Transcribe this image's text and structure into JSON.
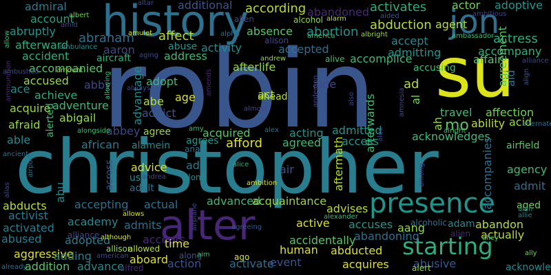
{
  "words": [
    {
      "text": "robin",
      "color": "#39568c"
    },
    {
      "text": "christopher",
      "color": "#287d8e"
    },
    {
      "text": "su",
      "color": "#dce319"
    },
    {
      "text": "history",
      "color": "#2d708e"
    },
    {
      "text": "jon",
      "color": "#2d708e"
    },
    {
      "text": "alter",
      "color": "#482677"
    },
    {
      "text": "presence",
      "color": "#1f968b"
    },
    {
      "text": "starting",
      "color": "#29af7f"
    },
    {
      "text": "admiral",
      "color": "#287d8e"
    },
    {
      "text": "additional",
      "color": "#39568c"
    },
    {
      "text": "according",
      "color": "#b8de29"
    },
    {
      "text": "activates",
      "color": "#29af7f"
    },
    {
      "text": "actor",
      "color": "#73d055"
    },
    {
      "text": "adoptive",
      "color": "#1f968b"
    },
    {
      "text": "account",
      "color": "#20a387"
    },
    {
      "text": "abandoned",
      "color": "#482677"
    },
    {
      "text": "abduction",
      "color": "#b8de29"
    },
    {
      "text": "actress",
      "color": "#29af7f"
    },
    {
      "text": "abraham",
      "color": "#2d708e"
    },
    {
      "text": "affect",
      "color": "#b8de29"
    },
    {
      "text": "address",
      "color": "#3cbb75"
    },
    {
      "text": "absence",
      "color": "#55c667"
    },
    {
      "text": "abortion",
      "color": "#1f968b"
    },
    {
      "text": "agent",
      "color": "#b8de29"
    },
    {
      "text": "accompany",
      "color": "#29af7f"
    },
    {
      "text": "abruptly",
      "color": "#1f968b"
    },
    {
      "text": "afterward",
      "color": "#29af7f"
    },
    {
      "text": "aaron",
      "color": "#404788"
    },
    {
      "text": "abuse",
      "color": "#1f968b"
    },
    {
      "text": "activity",
      "color": "#238a8d"
    },
    {
      "text": "accept",
      "color": "#238a8d"
    },
    {
      "text": "accident",
      "color": "#29af7f"
    },
    {
      "text": "aircraft",
      "color": "#29af7f"
    },
    {
      "text": "accepted",
      "color": "#2d708e"
    },
    {
      "text": "admitting",
      "color": "#1f968b"
    },
    {
      "text": "affair",
      "color": "#55c667"
    },
    {
      "text": "accompanied",
      "color": "#55c667"
    },
    {
      "text": "afterlife",
      "color": "#95d840"
    },
    {
      "text": "accomplice",
      "color": "#3cbb75"
    },
    {
      "text": "accusing",
      "color": "#3cbb75"
    },
    {
      "text": "accused",
      "color": "#95d840"
    },
    {
      "text": "abby",
      "color": "#404788"
    },
    {
      "text": "adopt",
      "color": "#3cbb75"
    },
    {
      "text": "aide",
      "color": "#404788"
    },
    {
      "text": "ace",
      "color": "#238a8d"
    },
    {
      "text": "achieve",
      "color": "#29af7f"
    },
    {
      "text": "act",
      "color": "#b8de29"
    },
    {
      "text": "ad",
      "color": "#b8de29"
    },
    {
      "text": "age",
      "color": "#dce319"
    },
    {
      "text": "ahead",
      "color": "#b8de29"
    },
    {
      "text": "abe",
      "color": "#b8de29"
    },
    {
      "text": "acquire",
      "color": "#95d840"
    },
    {
      "text": "adventure",
      "color": "#3cbb75"
    },
    {
      "text": "abigail",
      "color": "#95d840"
    },
    {
      "text": "addict",
      "color": "#39568c"
    },
    {
      "text": "travel",
      "color": "#3cbb75"
    },
    {
      "text": "affection",
      "color": "#73d055"
    },
    {
      "text": "acid",
      "color": "#95d840"
    },
    {
      "text": "afraid",
      "color": "#95d840"
    },
    {
      "text": "abbey",
      "color": "#404788"
    },
    {
      "text": "agree",
      "color": "#95d840"
    },
    {
      "text": "acquired",
      "color": "#55c667"
    },
    {
      "text": "acting",
      "color": "#1f968b"
    },
    {
      "text": "admitted",
      "color": "#1f968b"
    },
    {
      "text": "mo",
      "color": "#55c667"
    },
    {
      "text": "ability",
      "color": "#b8de29"
    },
    {
      "text": "able",
      "color": "#238a8d"
    },
    {
      "text": "african",
      "color": "#287d8e"
    },
    {
      "text": "alamein",
      "color": "#238a8d"
    },
    {
      "text": "agrees",
      "color": "#1f968b"
    },
    {
      "text": "afford",
      "color": "#dce319"
    },
    {
      "text": "agreed",
      "color": "#3cbb75"
    },
    {
      "text": "access",
      "color": "#1f968b"
    },
    {
      "text": "acknowledges",
      "color": "#3cbb75"
    },
    {
      "text": "airfield",
      "color": "#55c667"
    },
    {
      "text": "advice",
      "color": "#dce319"
    },
    {
      "text": "add",
      "color": "#287d8e"
    },
    {
      "text": "air",
      "color": "#39568c"
    },
    {
      "text": "agency",
      "color": "#3cbb75"
    },
    {
      "text": "us",
      "color": "#238a8d"
    },
    {
      "text": "adult",
      "color": "#2d708e"
    },
    {
      "text": "admit",
      "color": "#2d708e"
    },
    {
      "text": "aged",
      "color": "#73d055"
    },
    {
      "text": "abducts",
      "color": "#b8de29"
    },
    {
      "text": "accepting",
      "color": "#2d708e"
    },
    {
      "text": "actual",
      "color": "#2d708e"
    },
    {
      "text": "advanced",
      "color": "#3cbb75"
    },
    {
      "text": "acquaintance",
      "color": "#95d840"
    },
    {
      "text": "advises",
      "color": "#b8de29"
    },
    {
      "text": "activist",
      "color": "#287d8e"
    },
    {
      "text": "academy",
      "color": "#238a8d"
    },
    {
      "text": "admits",
      "color": "#2d708e"
    },
    {
      "text": "active",
      "color": "#dce319"
    },
    {
      "text": "accuses",
      "color": "#1f968b"
    },
    {
      "text": "adam",
      "color": "#238a8d"
    },
    {
      "text": "abandon",
      "color": "#b8de29"
    },
    {
      "text": "activated",
      "color": "#287d8e"
    },
    {
      "text": "aang",
      "color": "#95d840"
    },
    {
      "text": "actually",
      "color": "#b8de29"
    },
    {
      "text": "abused",
      "color": "#287d8e"
    },
    {
      "text": "adopted",
      "color": "#287d8e"
    },
    {
      "text": "accepts",
      "color": "#482677"
    },
    {
      "text": "time",
      "color": "#dce319"
    },
    {
      "text": "accidentally",
      "color": "#55c667"
    },
    {
      "text": "abandoning",
      "color": "#2d708e"
    },
    {
      "text": "aggressive",
      "color": "#dce319"
    },
    {
      "text": "adding",
      "color": "#287d8e"
    },
    {
      "text": "aboard",
      "color": "#dce319"
    },
    {
      "text": "human",
      "color": "#dce319"
    },
    {
      "text": "abducted",
      "color": "#dce319"
    },
    {
      "text": "addition",
      "color": "#55c667"
    },
    {
      "text": "advance",
      "color": "#238a8d"
    },
    {
      "text": "action",
      "color": "#39568c"
    },
    {
      "text": "activate",
      "color": "#2d708e"
    },
    {
      "text": "event",
      "color": "#39568c"
    },
    {
      "text": "acquires",
      "color": "#dce319"
    },
    {
      "text": "abusive",
      "color": "#39568c"
    },
    {
      "text": "acknowledge",
      "color": "#238a8d"
    },
    {
      "text": "alerted",
      "color": "#3cbb75"
    },
    {
      "text": "abu",
      "color": "#238a8d"
    },
    {
      "text": "afterwards",
      "color": "#3cbb75"
    },
    {
      "text": "aftermath",
      "color": "#b8de29"
    },
    {
      "text": "advantage",
      "color": "#238a8d"
    },
    {
      "text": "across",
      "color": "#39568c"
    },
    {
      "text": "aid",
      "color": "#2d708e"
    },
    {
      "text": "accompanies",
      "color": "#2d708e"
    },
    {
      "text": "agreement",
      "color": "#55c667"
    },
    {
      "text": "al",
      "color": "#73d055"
    },
    {
      "text": "ah",
      "color": "#95d840"
    },
    {
      "text": "albert",
      "color": "#73d055"
    },
    {
      "text": "allen",
      "color": "#404788"
    },
    {
      "text": "aided",
      "color": "#39568c"
    },
    {
      "text": "alcohol",
      "color": "#95d840"
    },
    {
      "text": "alarm",
      "color": "#b8de29"
    },
    {
      "text": "alison",
      "color": "#404788"
    },
    {
      "text": "albright",
      "color": "#95d840"
    },
    {
      "text": "ambassador",
      "color": "#3cbb75"
    },
    {
      "text": "aging",
      "color": "#404788"
    },
    {
      "text": "alive",
      "color": "#3cbb75"
    },
    {
      "text": "alliance",
      "color": "#404788"
    },
    {
      "text": "alert",
      "color": "#95d840"
    },
    {
      "text": "ally",
      "color": "#73d055"
    },
    {
      "text": "alan",
      "color": "#1f968b"
    },
    {
      "text": "allie",
      "color": "#287d8e"
    },
    {
      "text": "alfred",
      "color": "#482677"
    },
    {
      "text": "allowed",
      "color": "#b8de29"
    },
    {
      "text": "allison",
      "color": "#95d840"
    },
    {
      "text": "ago",
      "color": "#dce319"
    },
    {
      "text": "alone",
      "color": "#238a8d"
    },
    {
      "text": "along",
      "color": "#39568c"
    },
    {
      "text": "aim",
      "color": "#3cbb75"
    },
    {
      "text": "alice",
      "color": "#29af7f"
    },
    {
      "text": "almost",
      "color": "#404788"
    },
    {
      "text": "alley",
      "color": "#3cbb75"
    },
    {
      "text": "alright",
      "color": "#3cbb75"
    },
    {
      "text": "alliance",
      "color": "#404788"
    },
    {
      "text": "alcoholic",
      "color": "#2d708e"
    },
    {
      "text": "alien",
      "color": "#482677"
    },
    {
      "text": "alexander",
      "color": "#3cbb75"
    },
    {
      "text": "agreeing",
      "color": "#39568c"
    },
    {
      "text": "ambition",
      "color": "#dce319"
    },
    {
      "text": "alongside",
      "color": "#3cbb75"
    },
    {
      "text": "amy",
      "color": "#3cbb75"
    },
    {
      "text": "alex",
      "color": "#2d708e"
    },
    {
      "text": "ana",
      "color": "#2d708e"
    },
    {
      "text": "andrea",
      "color": "#404788"
    },
    {
      "text": "allows",
      "color": "#dce319"
    },
    {
      "text": "american",
      "color": "#404788"
    },
    {
      "text": "already",
      "color": "#2d708e"
    },
    {
      "text": "although",
      "color": "#dce319"
    },
    {
      "text": "amid",
      "color": "#404788"
    },
    {
      "text": "amulet",
      "color": "#dce319"
    },
    {
      "text": "alpha",
      "color": "#2d708e"
    },
    {
      "text": "america",
      "color": "#3cbb75"
    },
    {
      "text": "andrew",
      "color": "#95d840"
    },
    {
      "text": "amount",
      "color": "#95d840"
    },
    {
      "text": "ambushed",
      "color": "#404788"
    },
    {
      "text": "ambulance",
      "color": "#238a8d"
    },
    {
      "text": "ambitious",
      "color": "#404788"
    },
    {
      "text": "altar",
      "color": "#404788"
    },
    {
      "text": "always",
      "color": "#404788"
    },
    {
      "text": "alternate",
      "color": "#2d708e"
    },
    {
      "text": "ancient",
      "color": "#2d708e"
    },
    {
      "text": "amends",
      "color": "#482677"
    },
    {
      "text": "amnesia",
      "color": "#404788"
    },
    {
      "text": "also",
      "color": "#404788"
    },
    {
      "text": "anderson",
      "color": "#404788"
    },
    {
      "text": "allowing",
      "color": "#3cbb75"
    },
    {
      "text": "ammunition",
      "color": "#482677"
    },
    {
      "text": "alec",
      "color": "#404788"
    },
    {
      "text": "alias",
      "color": "#404788"
    },
    {
      "text": "airport",
      "color": "#2d708e"
    },
    {
      "text": "allow",
      "color": "#3cbb75"
    },
    {
      "text": "among",
      "color": "#404788"
    },
    {
      "text": "airplane",
      "color": "#404788"
    },
    {
      "text": "align",
      "color": "#39568c"
    },
    {
      "text": "amongst",
      "color": "#404788"
    },
    {
      "text": "amusement",
      "color": "#dce319"
    },
    {
      "text": "andie",
      "color": "#29af7f"
    },
    {
      "text": "ali",
      "color": "#404788"
    }
  ]
}
